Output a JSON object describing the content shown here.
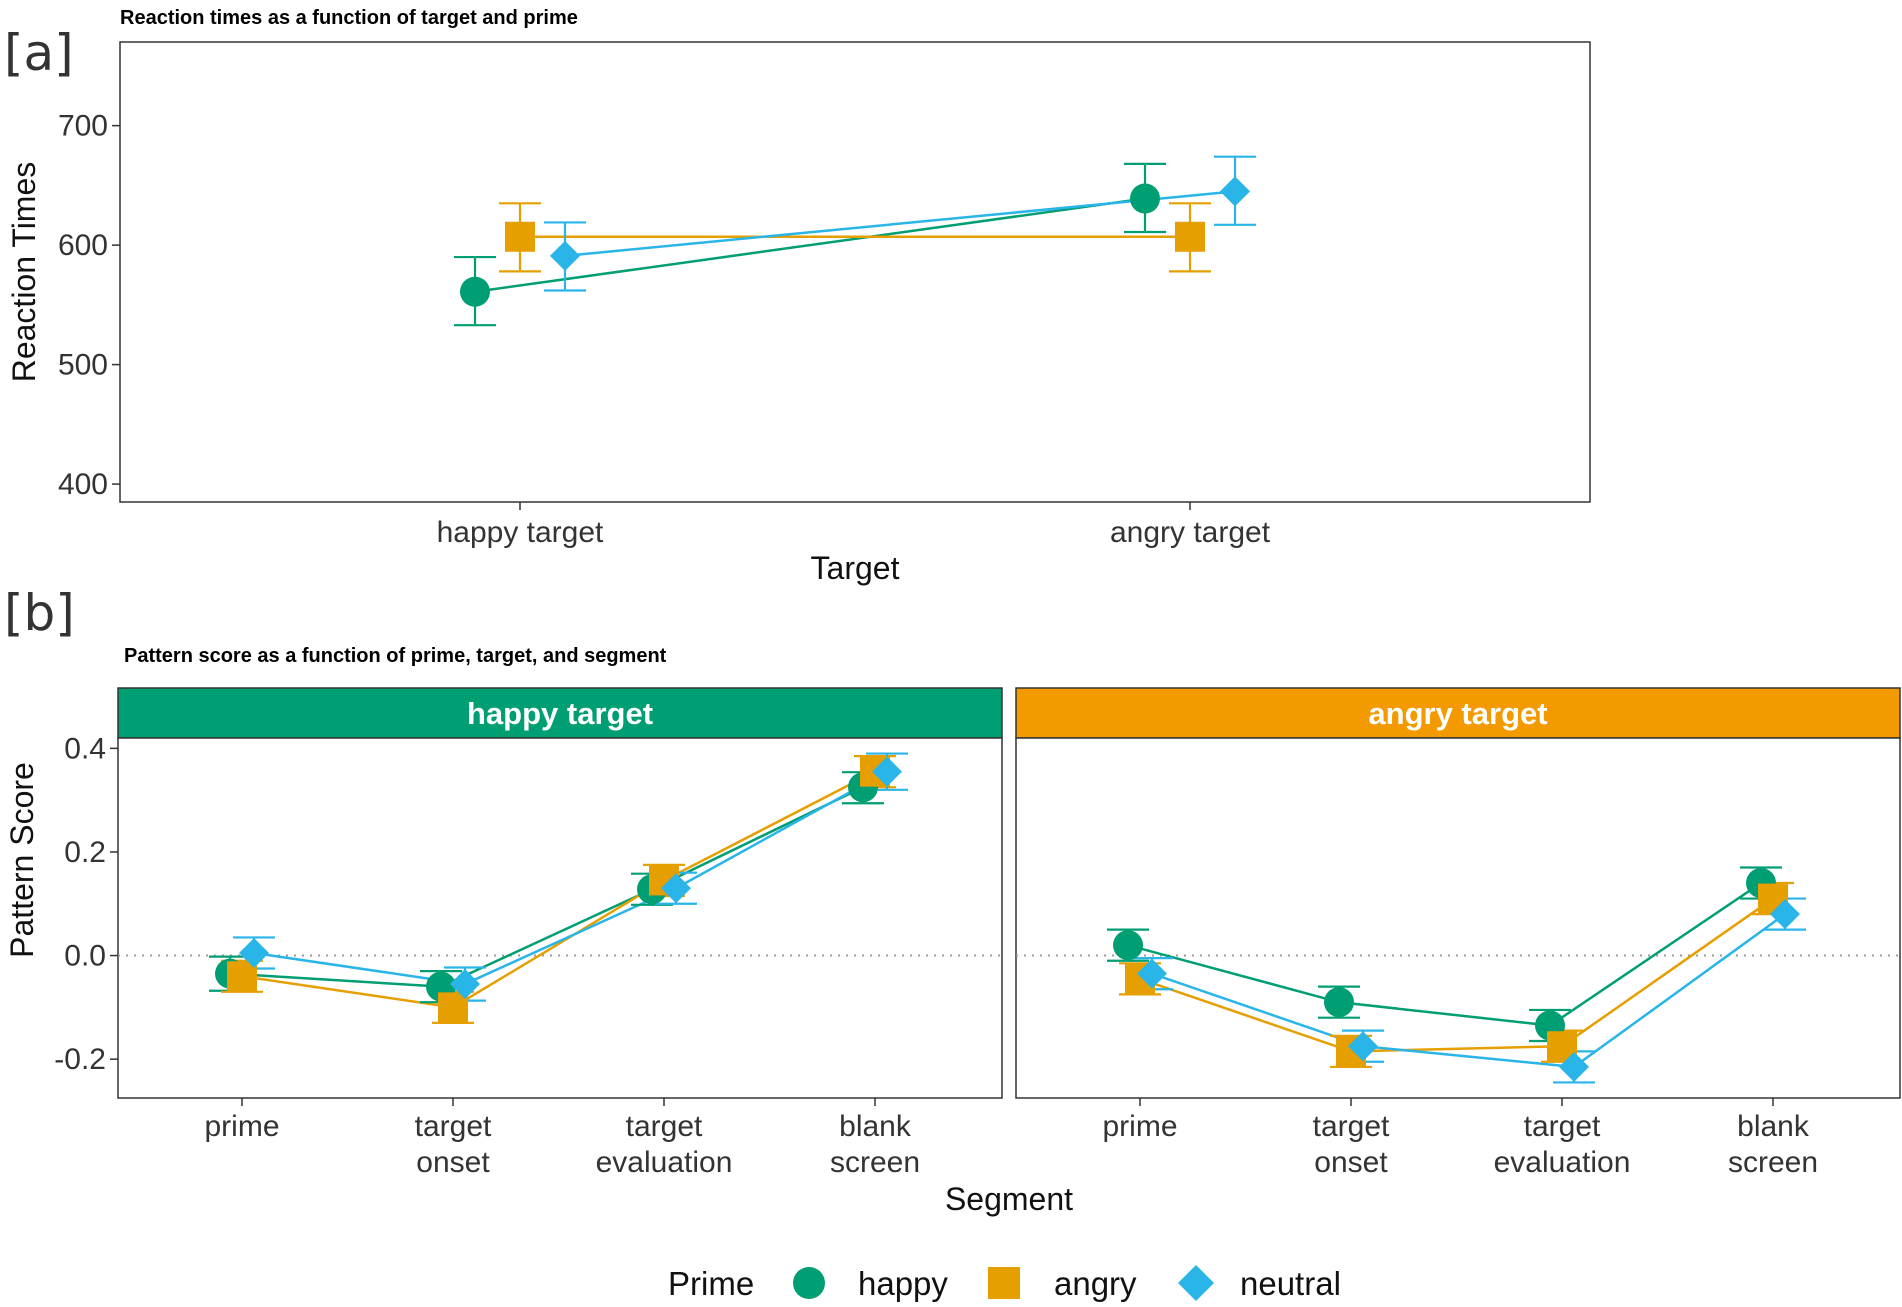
{
  "colors": {
    "happy": "#009E73",
    "angry": "#E69F00",
    "neutral": "#29B5E8",
    "strip_happy": "#009E73",
    "strip_angry": "#F29A00"
  },
  "panel_labels": {
    "a": "[a]",
    "b": "[b]"
  },
  "legend": {
    "title": "Prime",
    "items": [
      {
        "key": "happy",
        "label": "happy",
        "shape": "circle"
      },
      {
        "key": "angry",
        "label": "angry",
        "shape": "square"
      },
      {
        "key": "neutral",
        "label": "neutral",
        "shape": "diamond"
      }
    ]
  },
  "chart_data": [
    {
      "id": "a",
      "type": "line",
      "title": "Reaction times as a function of target and prime",
      "xlabel": "Target",
      "ylabel": "Reaction Times",
      "categories": [
        "happy target",
        "angry target"
      ],
      "ylim": [
        385,
        770
      ],
      "yticks": [
        {
          "value": 400,
          "label": "400"
        },
        {
          "value": 500,
          "label": "500"
        },
        {
          "value": 600,
          "label": "600"
        },
        {
          "value": 700,
          "label": "700"
        }
      ],
      "grid": false,
      "series": [
        {
          "name": "happy",
          "values": [
            561,
            639
          ],
          "err_low": [
            533,
            611
          ],
          "err_high": [
            590,
            668
          ]
        },
        {
          "name": "angry",
          "values": [
            607,
            607
          ],
          "err_low": [
            578,
            578
          ],
          "err_high": [
            635,
            635
          ]
        },
        {
          "name": "neutral",
          "values": [
            591,
            645
          ],
          "err_low": [
            562,
            617
          ],
          "err_high": [
            619,
            674
          ]
        }
      ]
    },
    {
      "id": "b",
      "type": "line",
      "title": "Pattern score as a function of prime, target, and segment",
      "xlabel": "Segment",
      "ylabel": "Pattern Score",
      "categories": [
        "prime",
        "target onset",
        "target evaluation",
        "blank screen"
      ],
      "tick_labels": [
        [
          "prime"
        ],
        [
          "target",
          "onset"
        ],
        [
          "target",
          "evaluation"
        ],
        [
          "blank",
          "screen"
        ]
      ],
      "ylim": [
        -0.275,
        0.42
      ],
      "yticks": [
        {
          "value": -0.2,
          "label": "-0.2"
        },
        {
          "value": 0.0,
          "label": "0.0"
        },
        {
          "value": 0.2,
          "label": "0.2"
        },
        {
          "value": 0.4,
          "label": "0.4"
        }
      ],
      "reference_line": 0,
      "grid": false,
      "facets": [
        {
          "label": "happy target",
          "color_key": "strip_happy",
          "series": [
            {
              "name": "happy",
              "values": [
                -0.035,
                -0.06,
                0.128,
                0.325
              ],
              "err_low": [
                -0.068,
                -0.09,
                0.098,
                0.294
              ],
              "err_high": [
                -0.002,
                -0.03,
                0.158,
                0.354
              ]
            },
            {
              "name": "angry",
              "values": [
                -0.04,
                -0.1,
                0.145,
                0.355
              ],
              "err_low": [
                -0.07,
                -0.13,
                0.115,
                0.325
              ],
              "err_high": [
                -0.01,
                -0.07,
                0.175,
                0.385
              ]
            },
            {
              "name": "neutral",
              "values": [
                0.005,
                -0.055,
                0.13,
                0.355
              ],
              "err_low": [
                -0.025,
                -0.087,
                0.1,
                0.32
              ],
              "err_high": [
                0.035,
                -0.023,
                0.16,
                0.39
              ]
            }
          ]
        },
        {
          "label": "angry target",
          "color_key": "strip_angry",
          "series": [
            {
              "name": "happy",
              "values": [
                0.02,
                -0.09,
                -0.135,
                0.14
              ],
              "err_low": [
                -0.01,
                -0.12,
                -0.165,
                0.11
              ],
              "err_high": [
                0.05,
                -0.06,
                -0.105,
                0.17
              ]
            },
            {
              "name": "angry",
              "values": [
                -0.045,
                -0.185,
                -0.175,
                0.11
              ],
              "err_low": [
                -0.075,
                -0.215,
                -0.205,
                0.08
              ],
              "err_high": [
                -0.015,
                -0.155,
                -0.145,
                0.14
              ]
            },
            {
              "name": "neutral",
              "values": [
                -0.035,
                -0.175,
                -0.215,
                0.08
              ],
              "err_low": [
                -0.065,
                -0.205,
                -0.245,
                0.05
              ],
              "err_high": [
                -0.005,
                -0.145,
                -0.185,
                0.11
              ]
            }
          ]
        }
      ]
    }
  ]
}
